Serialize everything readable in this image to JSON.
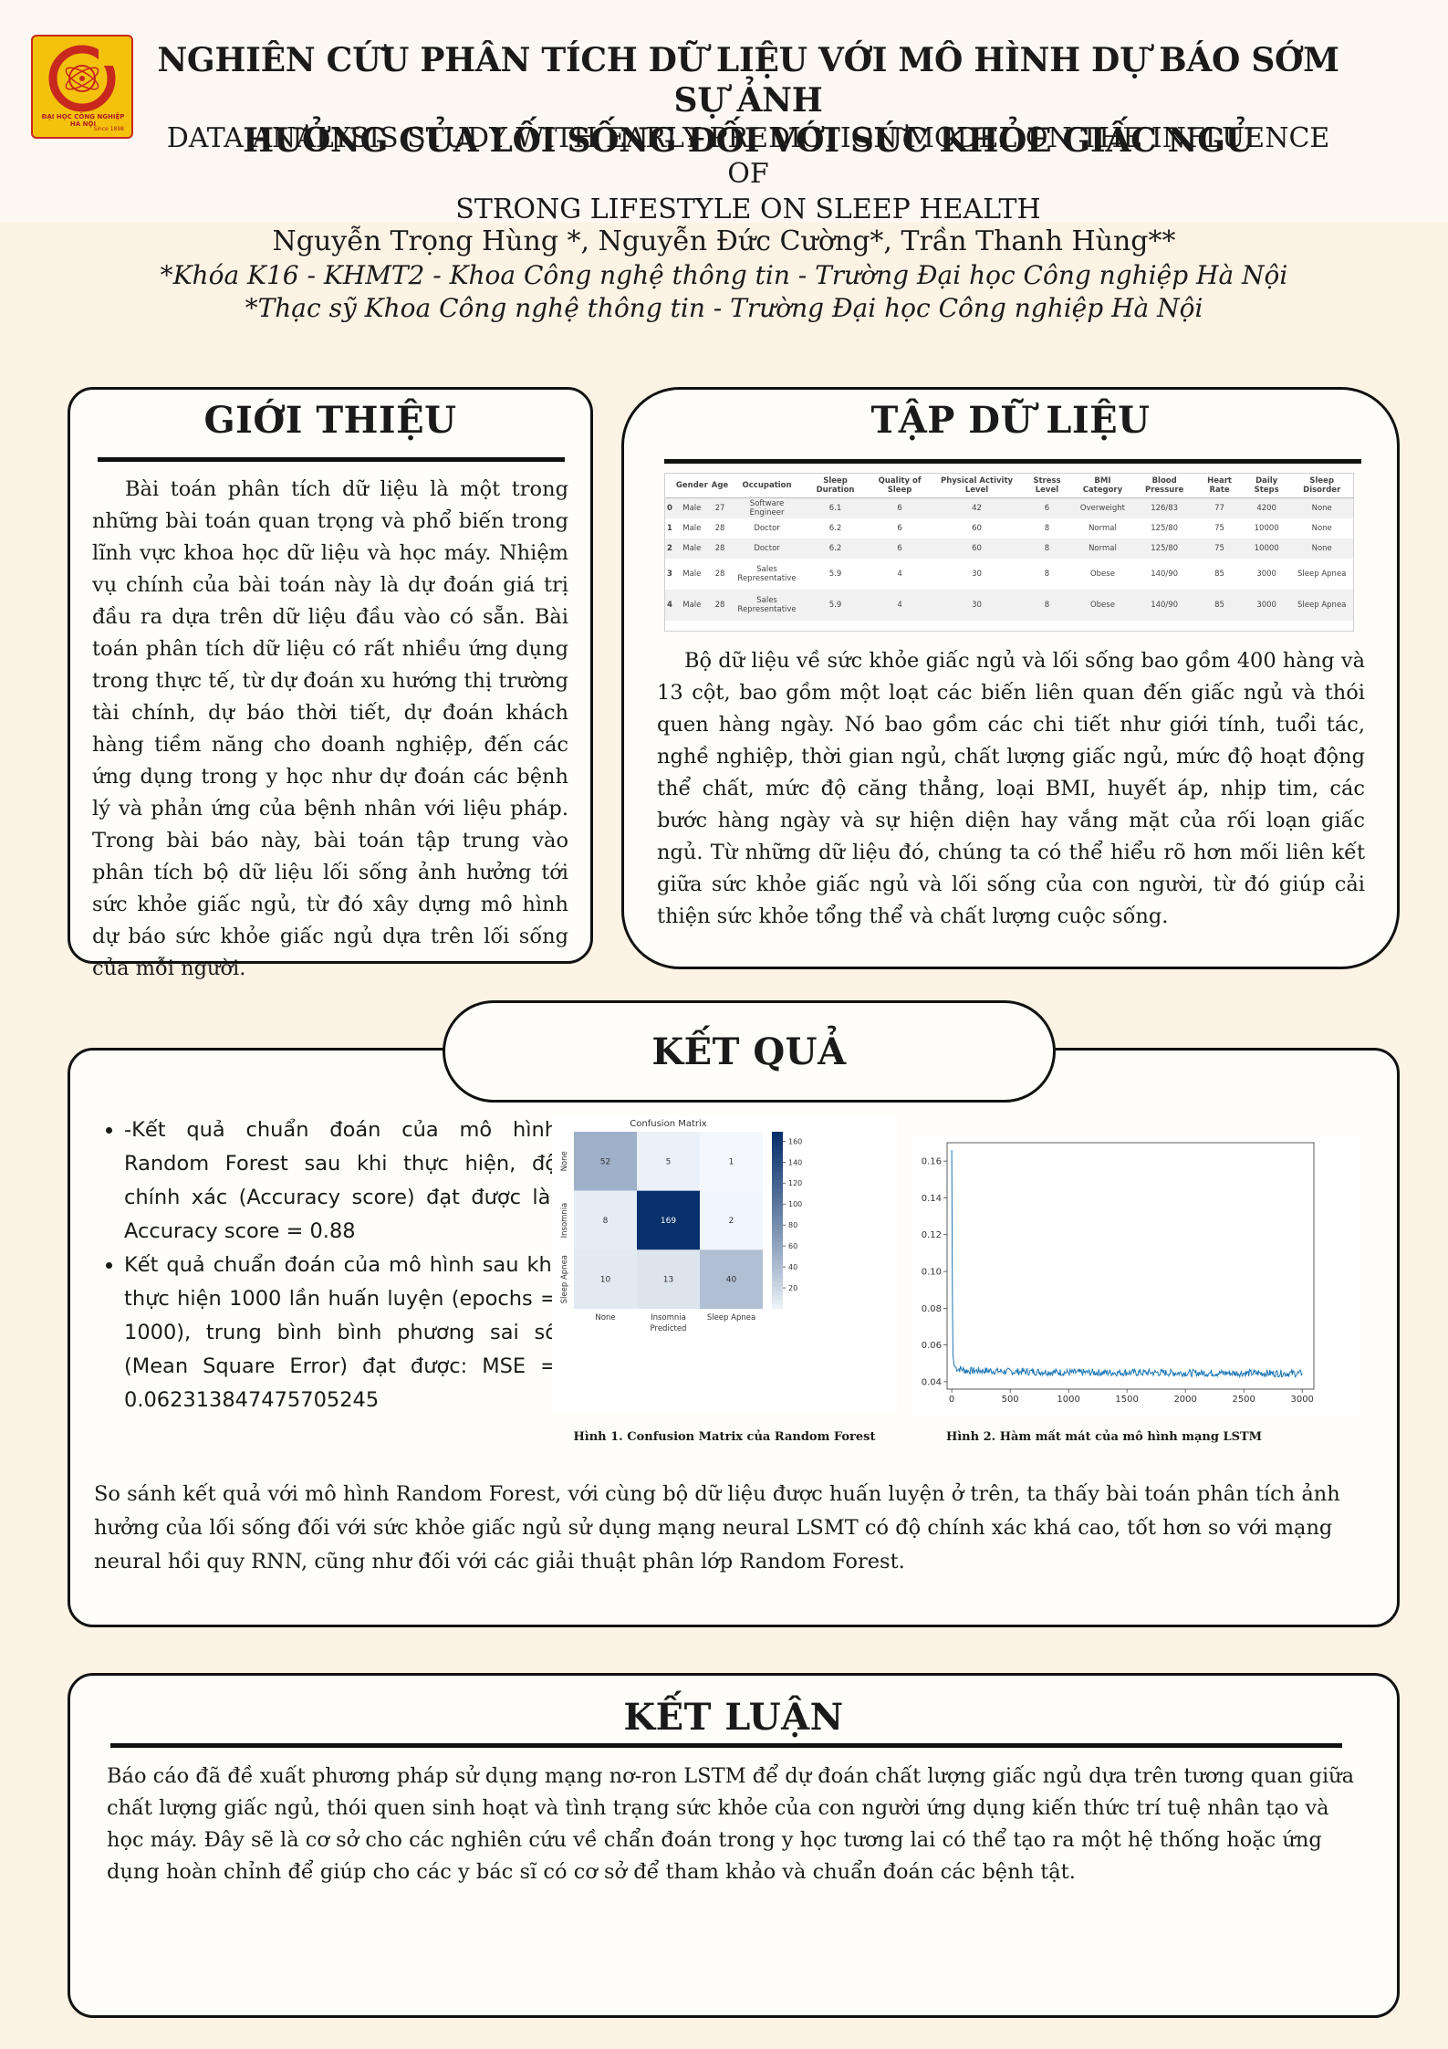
{
  "header": {
    "logo": {
      "text_top": "ĐẠI HỌC CÔNG NGHIỆP HÀ NỘI",
      "text_bottom": "Since 1898"
    },
    "title_vn_line1": "NGHIÊN CỨU PHÂN TÍCH DỮ LIỆU VỚI MÔ HÌNH DỰ BÁO SỚM SỰ ẢNH",
    "title_vn_line2": "HƯỞNG CỦA LỐI SỐNG ĐỐI VỚI SỨC KHỎE GIẤC NGỦ",
    "title_en_line1": "DATA ANALYSIS STUDY WITH EARLY PREDICTION MODEL ON THE INFLUENCE OF",
    "title_en_line2": "STRONG LIFESTYLE ON SLEEP HEALTH",
    "authors": "Nguyễn Trọng Hùng *, Nguyễn Đức Cường*, Trần Thanh Hùng**",
    "affiliation1": "*Khóa K16 - KHMT2 - Khoa Công nghệ thông tin - Trường Đại học Công nghiệp Hà Nội",
    "affiliation2": "*Thạc sỹ Khoa Công nghệ thông tin - Trường Đại học Công nghiệp Hà Nội"
  },
  "intro": {
    "title": "GIỚI THIỆU",
    "text": "Bài toán phân tích dữ liệu là một trong những bài toán quan trọng và phổ biến trong lĩnh vực khoa học dữ liệu và học máy. Nhiệm vụ chính của bài toán này là dự đoán giá trị đầu ra dựa trên dữ liệu đầu vào có sẵn. Bài toán phân tích dữ liệu có rất nhiều ứng dụng trong thực tế, từ dự đoán xu hướng thị trường tài chính, dự báo thời tiết, dự đoán khách hàng tiềm năng cho doanh nghiệp, đến các ứng dụng trong y học như dự đoán các bệnh lý và phản ứng của bệnh nhân với liệu pháp. Trong bài báo này, bài toán tập trung vào phân tích bộ dữ liệu lối sống ảnh hưởng tới sức khỏe giấc ngủ, từ đó xây dựng mô hình dự báo sức khỏe giấc ngủ dựa trên lối sống của mỗi người."
  },
  "dataset": {
    "title": "TẬP DỮ LIỆU",
    "columns": [
      "",
      "Gender",
      "Age",
      "Occupation",
      "Sleep Duration",
      "Quality of Sleep",
      "Physical Activity Level",
      "Stress Level",
      "BMI Category",
      "Blood Pressure",
      "Heart Rate",
      "Daily Steps",
      "Sleep Disorder"
    ],
    "rows": [
      [
        "0",
        "Male",
        "27",
        "Software Engineer",
        "6.1",
        "6",
        "42",
        "6",
        "Overweight",
        "126/83",
        "77",
        "4200",
        "None"
      ],
      [
        "1",
        "Male",
        "28",
        "Doctor",
        "6.2",
        "6",
        "60",
        "8",
        "Normal",
        "125/80",
        "75",
        "10000",
        "None"
      ],
      [
        "2",
        "Male",
        "28",
        "Doctor",
        "6.2",
        "6",
        "60",
        "8",
        "Normal",
        "125/80",
        "75",
        "10000",
        "None"
      ],
      [
        "3",
        "Male",
        "28",
        "Sales Representative",
        "5.9",
        "4",
        "30",
        "8",
        "Obese",
        "140/90",
        "85",
        "3000",
        "Sleep Apnea"
      ],
      [
        "4",
        "Male",
        "28",
        "Sales Representative",
        "5.9",
        "4",
        "30",
        "8",
        "Obese",
        "140/90",
        "85",
        "3000",
        "Sleep Apnea"
      ]
    ],
    "text": "Bộ dữ liệu về sức khỏe giấc ngủ và lối sống bao gồm 400 hàng và 13 cột, bao gồm một loạt các biến liên quan đến giấc ngủ và thói quen hàng ngày. Nó bao gồm các chi tiết như giới tính, tuổi tác, nghề nghiệp, thời gian ngủ, chất lượng giấc ngủ, mức độ hoạt động thể chất, mức độ căng thẳng, loại BMI, huyết áp, nhịp tim, các bước hàng ngày và sự hiện diện hay vắng mặt của rối loạn giấc ngủ. Từ những dữ liệu đó, chúng ta có thể hiểu rõ hơn mối liên kết giữa sức khỏe giấc ngủ và lối sống của con người, từ đó giúp cải thiện sức khỏe tổng thể và chất lượng cuộc sống."
  },
  "results": {
    "title": "KẾT QUẢ",
    "bullet1": "-Kết quả chuẩn đoán của mô hình Random Forest sau khi thực hiện, độ chính xác (Accuracy score) đạt được là: Accuracy score = 0.88",
    "bullet2": "Kết quả chuẩn đoán của mô hình sau khi thực hiện 1000 lần huấn luyện (epochs = 1000), trung bình bình phương sai số (Mean Square Error) đạt được: MSE = 0.062313847475705245",
    "caption1": "Hình 1. Confusion Matrix của Random Forest",
    "caption2": "Hình 2. Hàm mất mát của mô hình mạng LSTM",
    "comparison": "So sánh kết quả với mô hình Random Forest, với cùng bộ dữ liệu được huấn luyện ở trên, ta thấy bài toán phân tích ảnh hưởng của lối sống đối với sức khỏe giấc ngủ sử dụng mạng neural LSMT có độ chính xác khá cao, tốt hơn so với mạng neural hồi quy RNN, cũng như đối với các giải thuật phân lớp Random Forest."
  },
  "conclusion": {
    "title": "KẾT LUẬN",
    "text": "Báo cáo đã đề xuất phương pháp sử dụng mạng nơ-ron LSTM để dự đoán chất lượng giấc ngủ dựa trên tương quan giữa chất lượng giấc ngủ, thói quen sinh hoạt và tình trạng sức khỏe của con người ứng dụng kiến thức trí tuệ nhân tạo và học máy. Đây sẽ là cơ sở cho các nghiên cứu về chẩn đoán trong y học tương lai có thể tạo ra một hệ thống hoặc ứng dụng hoàn chỉnh để giúp cho các y bác sĩ có cơ sở để tham khảo và chuẩn đoán các bệnh tật."
  },
  "chart_data": [
    {
      "type": "heatmap",
      "title": "Confusion Matrix",
      "xlabel": "Predicted",
      "ylabel": "",
      "x_categories": [
        "None",
        "Insomnia",
        "Sleep Apnea"
      ],
      "y_categories": [
        "None",
        "Insomnia",
        "Sleep Apnea"
      ],
      "values": [
        [
          52,
          5,
          1
        ],
        [
          8,
          169,
          2
        ],
        [
          10,
          13,
          40
        ]
      ],
      "colorbar_ticks": [
        20,
        40,
        60,
        80,
        100,
        120,
        140,
        160
      ],
      "colorbar_range": [
        0,
        169
      ],
      "colormap": [
        "#f7fbff",
        "#08306b"
      ]
    },
    {
      "type": "line",
      "title": "",
      "xlabel": "",
      "ylabel": "",
      "xlim": [
        -40,
        3100
      ],
      "ylim": [
        0.036,
        0.17
      ],
      "xticks": [
        0,
        500,
        1000,
        1500,
        2000,
        2500,
        3000
      ],
      "yticks": [
        0.04,
        0.06,
        0.08,
        0.1,
        0.12,
        0.14,
        0.16
      ],
      "ytick_labels": [
        "0.04",
        "0.06",
        "0.08",
        "0.10",
        "0.12",
        "0.14",
        "0.16"
      ],
      "color": "#1f77b4",
      "series": [
        {
          "x": [
            0,
            5,
            10,
            20,
            30,
            50,
            80,
            120,
            200,
            300,
            500,
            700,
            1000,
            1300,
            1600,
            2000,
            2400,
            2800,
            3000
          ],
          "values": [
            0.166,
            0.09,
            0.055,
            0.049,
            0.048,
            0.047,
            0.047,
            0.046,
            0.046,
            0.046,
            0.0455,
            0.0455,
            0.045,
            0.045,
            0.045,
            0.0448,
            0.0447,
            0.0446,
            0.0445
          ]
        }
      ]
    }
  ]
}
